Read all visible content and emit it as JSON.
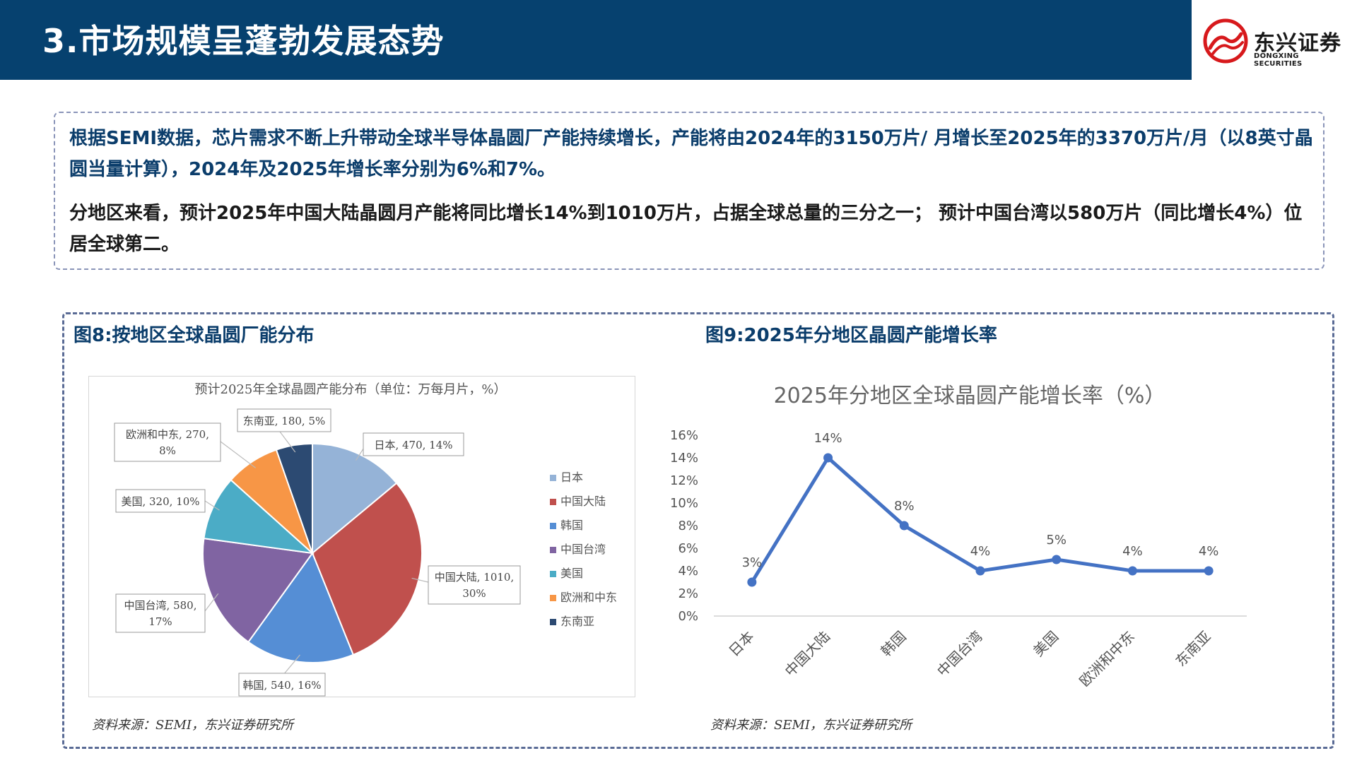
{
  "header": {
    "title": "3.市场规模呈蓬勃发展态势",
    "logo_cn": "东兴证券",
    "logo_en": "DONGXING SECURITIES",
    "bar_color": "#06416f",
    "logo_icon": "dongxing-logo-icon"
  },
  "summary": {
    "para1": "根据SEMI数据，芯片需求不断上升带动全球半导体晶圆厂产能持续增长，产能将由2024年的3150万片/ 月增长至2025年的3370万片/月（以8英寸晶圆当量计算），2024年及2025年增长率分别为6%和7%。",
    "para2": "分地区来看，预计2025年中国大陆晶圆月产能将同比增长14%到1010万片，占据全球总量的三分之一； 预计中国台湾以580万片（同比增长4%）位居全球第二。"
  },
  "figure8": {
    "title": "图8:按地区全球晶圆厂能分布",
    "source": "资料来源：SEMI，东兴证券研究所"
  },
  "figure9": {
    "title": "图9:2025年分地区晶圆产能增长率",
    "source": "资料来源：SEMI，东兴证券研究所"
  },
  "chart_data": [
    {
      "type": "pie",
      "title": "预计2025年全球晶圆产能分布（单位：万每月片，%）",
      "legend_position": "right",
      "slices": [
        {
          "name": "日本",
          "value": 470,
          "percent_label": "14%",
          "label": "日本, 470, 14%",
          "color": "#95b3d7"
        },
        {
          "name": "中国大陆",
          "value": 1010,
          "percent_label": "30%",
          "label": "中国大陆, 1010, 30%",
          "color": "#c0504d"
        },
        {
          "name": "韩国",
          "value": 540,
          "percent_label": "16%",
          "label": "韩国, 540, 16%",
          "color": "#558ed5"
        },
        {
          "name": "中国台湾",
          "value": 580,
          "percent_label": "17%",
          "label": "中国台湾, 580, 17%",
          "color": "#8064a2"
        },
        {
          "name": "美国",
          "value": 320,
          "percent_label": "10%",
          "label": "美国, 320, 10%",
          "color": "#4bacc6"
        },
        {
          "name": "欧洲和中东",
          "value": 270,
          "percent_label": "8%",
          "label": "欧洲和中东, 270, 8%",
          "color": "#f79646"
        },
        {
          "name": "东南亚",
          "value": 180,
          "percent_label": "5%",
          "label": "东南亚, 180, 5%",
          "color": "#2c4a72"
        }
      ]
    },
    {
      "type": "line",
      "title": "2025年分地区全球晶圆产能增长率（%）",
      "categories": [
        "日本",
        "中国大陆",
        "韩国",
        "中国台湾",
        "美国",
        "欧洲和中东",
        "东南亚"
      ],
      "series": [
        {
          "values": [
            3,
            14,
            8,
            4,
            5,
            4,
            4
          ],
          "labels": [
            "3%",
            "14%",
            "8%",
            "4%",
            "5%",
            "4%",
            "4%"
          ],
          "color": "#4472c4"
        }
      ],
      "y_ticks": [
        "0%",
        "2%",
        "4%",
        "6%",
        "8%",
        "10%",
        "12%",
        "14%",
        "16%"
      ],
      "ylim": [
        0,
        16
      ],
      "grid": false
    }
  ]
}
